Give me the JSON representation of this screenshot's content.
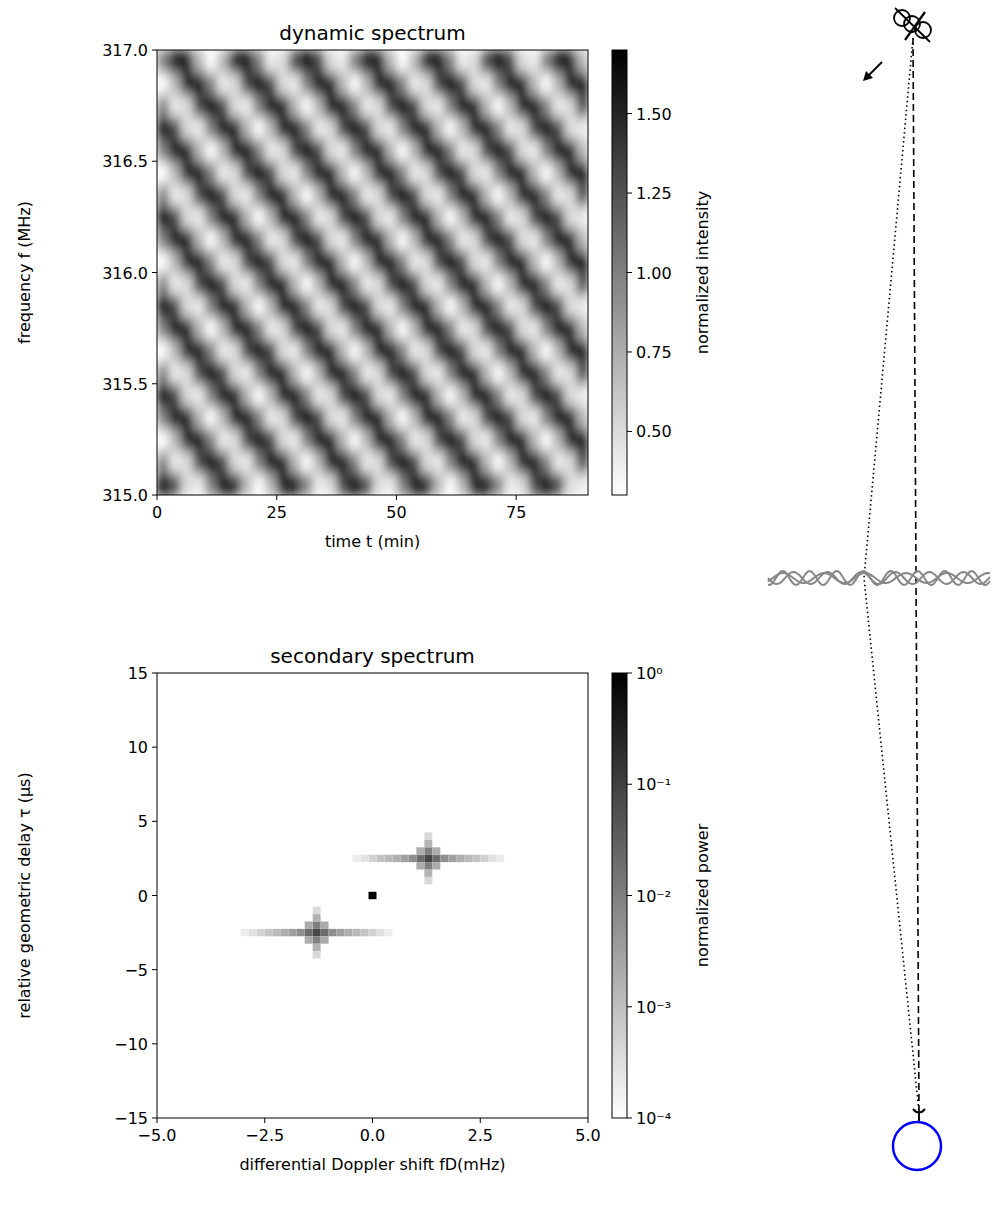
{
  "chart_data": [
    {
      "type": "heatmap",
      "title": "dynamic spectrum",
      "x_label": "time t (min)",
      "y_label": "frequency f (MHz)",
      "color": "gray",
      "xlim": [
        0,
        90
      ],
      "ylim": [
        315,
        317
      ],
      "xticks": [
        0,
        25,
        50,
        75
      ],
      "yticks": [
        {
          "value": 315,
          "label": "315.0"
        },
        {
          "value": 315.5,
          "label": "315.5"
        },
        {
          "value": 316,
          "label": "316.0"
        },
        {
          "value": 316.5,
          "label": "316.5"
        },
        {
          "value": 317,
          "label": "317.0"
        }
      ],
      "x_bins": [
        0,
        2.5,
        5,
        7.5,
        10,
        12.5,
        15,
        17.5,
        20,
        22.5,
        25,
        27.5,
        30,
        32.5,
        35,
        37.5,
        40,
        42.5,
        45,
        47.5,
        50,
        52.5,
        55,
        57.5,
        60,
        62.5,
        65,
        67.5,
        70,
        72.5,
        75,
        77.5,
        80,
        82.5,
        85,
        87.5,
        90
      ],
      "y_bins": [
        315,
        315.1,
        315.2,
        315.3,
        315.4,
        315.5,
        315.6,
        315.7,
        315.8,
        315.9,
        316,
        316.1,
        316.2,
        316.3,
        316.4,
        316.5,
        316.6,
        316.7,
        316.8,
        316.9,
        317
      ],
      "cells": [
        [
          1.7,
          1.3,
          0.5,
          0.4,
          1.0,
          1.6,
          1.5,
          0.7,
          0.3,
          0.7,
          1.5,
          1.6,
          1.0,
          0.4,
          0.5,
          1.3,
          1.7,
          1.3,
          0.5,
          0.4,
          1.0,
          1.6,
          1.5,
          0.7,
          0.3,
          0.7,
          1.5,
          1.6,
          1.0,
          0.4,
          0.5,
          1.3,
          1.7,
          1.3,
          0.5,
          0.4
        ],
        [
          1.0,
          0.4,
          0.5,
          1.3,
          1.7,
          1.3,
          0.5,
          0.4,
          1.0,
          1.6,
          1.5,
          0.7,
          0.3,
          0.7,
          1.5,
          1.6,
          1.0,
          0.4,
          0.5,
          1.3,
          1.7,
          1.3,
          0.5,
          0.4,
          1.0,
          1.6,
          1.5,
          0.7,
          0.3,
          0.7,
          1.5,
          1.6,
          1.0,
          0.4,
          0.5,
          1.3
        ],
        [
          0.3,
          0.7,
          1.5,
          1.6,
          1.0,
          0.4,
          0.5,
          1.3,
          1.7,
          1.3,
          0.5,
          0.4,
          1.0,
          1.6,
          1.5,
          0.7,
          0.3,
          0.7,
          1.5,
          1.6,
          1.0,
          0.4,
          0.5,
          1.3,
          1.7,
          1.3,
          0.5,
          0.4,
          1.0,
          1.6,
          1.5,
          0.7,
          0.3,
          0.7,
          1.5,
          1.6
        ],
        [
          1.0,
          1.6,
          1.5,
          0.7,
          0.3,
          0.7,
          1.5,
          1.6,
          1.0,
          0.4,
          0.5,
          1.3,
          1.7,
          1.3,
          0.5,
          0.4,
          1.0,
          1.6,
          1.5,
          0.7,
          0.3,
          0.7,
          1.5,
          1.6,
          1.0,
          0.4,
          0.5,
          1.3,
          1.7,
          1.3,
          0.5,
          0.4,
          1.0,
          1.6,
          1.5,
          0.7
        ],
        [
          1.7,
          1.3,
          0.5,
          0.4,
          1.0,
          1.6,
          1.5,
          0.7,
          0.3,
          0.7,
          1.5,
          1.6,
          1.0,
          0.4,
          0.5,
          1.3,
          1.7,
          1.3,
          0.5,
          0.4,
          1.0,
          1.6,
          1.5,
          0.7,
          0.3,
          0.7,
          1.5,
          1.6,
          1.0,
          0.4,
          0.5,
          1.3,
          1.7,
          1.3,
          0.5,
          0.4
        ],
        [
          1.0,
          0.4,
          0.5,
          1.3,
          1.7,
          1.3,
          0.5,
          0.4,
          1.0,
          1.6,
          1.5,
          0.7,
          0.3,
          0.7,
          1.5,
          1.6,
          1.0,
          0.4,
          0.5,
          1.3,
          1.7,
          1.3,
          0.5,
          0.4,
          1.0,
          1.6,
          1.5,
          0.7,
          0.3,
          0.7,
          1.5,
          1.6,
          1.0,
          0.4,
          0.5,
          1.3
        ],
        [
          0.3,
          0.7,
          1.5,
          1.6,
          1.0,
          0.4,
          0.5,
          1.3,
          1.7,
          1.3,
          0.5,
          0.4,
          1.0,
          1.6,
          1.5,
          0.7,
          0.3,
          0.7,
          1.5,
          1.6,
          1.0,
          0.4,
          0.5,
          1.3,
          1.7,
          1.3,
          0.5,
          0.4,
          1.0,
          1.6,
          1.5,
          0.7,
          0.3,
          0.7,
          1.5,
          1.6
        ],
        [
          1.0,
          1.6,
          1.5,
          0.7,
          0.3,
          0.7,
          1.5,
          1.6,
          1.0,
          0.4,
          0.5,
          1.3,
          1.7,
          1.3,
          0.5,
          0.4,
          1.0,
          1.6,
          1.5,
          0.7,
          0.3,
          0.7,
          1.5,
          1.6,
          1.0,
          0.4,
          0.5,
          1.3,
          1.7,
          1.3,
          0.5,
          0.4,
          1.0,
          1.6,
          1.5,
          0.7
        ],
        [
          1.7,
          1.3,
          0.5,
          0.4,
          1.0,
          1.6,
          1.5,
          0.7,
          0.3,
          0.7,
          1.5,
          1.6,
          1.0,
          0.4,
          0.5,
          1.3,
          1.7,
          1.3,
          0.5,
          0.4,
          1.0,
          1.6,
          1.5,
          0.7,
          0.3,
          0.7,
          1.5,
          1.6,
          1.0,
          0.4,
          0.5,
          1.3,
          1.7,
          1.3,
          0.5,
          0.4
        ],
        [
          1.0,
          0.4,
          0.5,
          1.3,
          1.7,
          1.3,
          0.5,
          0.4,
          1.0,
          1.6,
          1.5,
          0.7,
          0.3,
          0.7,
          1.5,
          1.6,
          1.0,
          0.4,
          0.5,
          1.3,
          1.7,
          1.3,
          0.5,
          0.4,
          1.0,
          1.6,
          1.5,
          0.7,
          0.3,
          0.7,
          1.5,
          1.6,
          1.0,
          0.4,
          0.5,
          1.3
        ],
        [
          0.3,
          0.7,
          1.5,
          1.6,
          1.0,
          0.4,
          0.5,
          1.3,
          1.7,
          1.3,
          0.5,
          0.4,
          1.0,
          1.6,
          1.5,
          0.7,
          0.3,
          0.7,
          1.5,
          1.6,
          1.0,
          0.4,
          0.5,
          1.3,
          1.7,
          1.3,
          0.5,
          0.4,
          1.0,
          1.6,
          1.5,
          0.7,
          0.3,
          0.7,
          1.5,
          1.6
        ],
        [
          1.0,
          1.6,
          1.5,
          0.7,
          0.3,
          0.7,
          1.5,
          1.6,
          1.0,
          0.4,
          0.5,
          1.3,
          1.7,
          1.3,
          0.5,
          0.4,
          1.0,
          1.6,
          1.5,
          0.7,
          0.3,
          0.7,
          1.5,
          1.6,
          1.0,
          0.4,
          0.5,
          1.3,
          1.7,
          1.3,
          0.5,
          0.4,
          1.0,
          1.6,
          1.5,
          0.7
        ],
        [
          1.7,
          1.3,
          0.5,
          0.4,
          1.0,
          1.6,
          1.5,
          0.7,
          0.3,
          0.7,
          1.5,
          1.6,
          1.0,
          0.4,
          0.5,
          1.3,
          1.7,
          1.3,
          0.5,
          0.4,
          1.0,
          1.6,
          1.5,
          0.7,
          0.3,
          0.7,
          1.5,
          1.6,
          1.0,
          0.4,
          0.5,
          1.3,
          1.7,
          1.3,
          0.5,
          0.4
        ],
        [
          1.0,
          0.4,
          0.5,
          1.3,
          1.7,
          1.3,
          0.5,
          0.4,
          1.0,
          1.6,
          1.5,
          0.7,
          0.3,
          0.7,
          1.5,
          1.6,
          1.0,
          0.4,
          0.5,
          1.3,
          1.7,
          1.3,
          0.5,
          0.4,
          1.0,
          1.6,
          1.5,
          0.7,
          0.3,
          0.7,
          1.5,
          1.6,
          1.0,
          0.4,
          0.5,
          1.3
        ],
        [
          0.3,
          0.7,
          1.5,
          1.6,
          1.0,
          0.4,
          0.5,
          1.3,
          1.7,
          1.3,
          0.5,
          0.4,
          1.0,
          1.6,
          1.5,
          0.7,
          0.3,
          0.7,
          1.5,
          1.6,
          1.0,
          0.4,
          0.5,
          1.3,
          1.7,
          1.3,
          0.5,
          0.4,
          1.0,
          1.6,
          1.5,
          0.7,
          0.3,
          0.7,
          1.5,
          1.6
        ],
        [
          1.0,
          1.6,
          1.5,
          0.7,
          0.3,
          0.7,
          1.5,
          1.6,
          1.0,
          0.4,
          0.5,
          1.3,
          1.7,
          1.3,
          0.5,
          0.4,
          1.0,
          1.6,
          1.5,
          0.7,
          0.3,
          0.7,
          1.5,
          1.6,
          1.0,
          0.4,
          0.5,
          1.3,
          1.7,
          1.3,
          0.5,
          0.4,
          1.0,
          1.6,
          1.5,
          0.7
        ],
        [
          1.7,
          1.3,
          0.5,
          0.4,
          1.0,
          1.6,
          1.5,
          0.7,
          0.3,
          0.7,
          1.5,
          1.6,
          1.0,
          0.4,
          0.5,
          1.3,
          1.7,
          1.3,
          0.5,
          0.4,
          1.0,
          1.6,
          1.5,
          0.7,
          0.3,
          0.7,
          1.5,
          1.6,
          1.0,
          0.4,
          0.5,
          1.3,
          1.7,
          1.3,
          0.5,
          0.4
        ],
        [
          1.0,
          0.4,
          0.5,
          1.3,
          1.7,
          1.3,
          0.5,
          0.4,
          1.0,
          1.6,
          1.5,
          0.7,
          0.3,
          0.7,
          1.5,
          1.6,
          1.0,
          0.4,
          0.5,
          1.3,
          1.7,
          1.3,
          0.5,
          0.4,
          1.0,
          1.6,
          1.5,
          0.7,
          0.3,
          0.7,
          1.5,
          1.6,
          1.0,
          0.4,
          0.5,
          1.3
        ],
        [
          0.3,
          0.7,
          1.5,
          1.6,
          1.0,
          0.4,
          0.5,
          1.3,
          1.7,
          1.3,
          0.5,
          0.4,
          1.0,
          1.6,
          1.5,
          0.7,
          0.3,
          0.7,
          1.5,
          1.6,
          1.0,
          0.4,
          0.5,
          1.3,
          1.7,
          1.3,
          0.5,
          0.4,
          1.0,
          1.6,
          1.5,
          0.7,
          0.3,
          0.7,
          1.5,
          1.6
        ],
        [
          1.0,
          1.6,
          1.5,
          0.7,
          0.3,
          0.7,
          1.5,
          1.6,
          1.0,
          0.4,
          0.5,
          1.3,
          1.7,
          1.3,
          0.5,
          0.4,
          1.0,
          1.6,
          1.5,
          0.7,
          0.3,
          0.7,
          1.5,
          1.6,
          1.0,
          0.4,
          0.5,
          1.3,
          1.7,
          1.3,
          0.5,
          0.4,
          1.0,
          1.6,
          1.5,
          0.7
        ]
      ],
      "colorbar": {
        "label": "normalized intensity",
        "range": [
          0.3,
          1.7
        ],
        "ticks": [
          {
            "value": 0.5,
            "label": "0.50"
          },
          {
            "value": 0.75,
            "label": "0.75"
          },
          {
            "value": 1,
            "label": "1.00"
          },
          {
            "value": 1.25,
            "label": "1.25"
          },
          {
            "value": 1.5,
            "label": "1.50"
          }
        ]
      }
    },
    {
      "type": "heatmap",
      "title": "secondary spectrum",
      "x_label": "differential Doppler shift fD(mHz)",
      "y_label": "relative geometric delay τ (μs)",
      "color": "gray",
      "xlim": [
        -5,
        5
      ],
      "ylim": [
        -15,
        15
      ],
      "xticks": [
        {
          "value": -5,
          "label": "−5.0"
        },
        {
          "value": -2.5,
          "label": "−2.5"
        },
        {
          "value": 0,
          "label": "0.0"
        },
        {
          "value": 2.5,
          "label": "2.5"
        },
        {
          "value": 5,
          "label": "5.0"
        }
      ],
      "yticks": [
        {
          "value": -15,
          "label": "−15"
        },
        {
          "value": -10,
          "label": "−10"
        },
        {
          "value": -5,
          "label": "−5"
        },
        0,
        5,
        10,
        15
      ],
      "cell_size": [
        0.185,
        0.5
      ],
      "cells": [
        [
          0,
          0,
          1
        ],
        [
          1.296,
          2.5,
          0.08
        ],
        [
          1.111,
          2.5,
          0.02
        ],
        [
          1.481,
          2.5,
          0.02
        ],
        [
          0.926,
          2.5,
          0.006
        ],
        [
          1.667,
          2.5,
          0.006
        ],
        [
          0.741,
          2.5,
          0.003
        ],
        [
          1.852,
          2.5,
          0.003
        ],
        [
          0.556,
          2.5,
          0.0018
        ],
        [
          2.037,
          2.5,
          0.0018
        ],
        [
          0.37,
          2.5,
          0.0012
        ],
        [
          2.222,
          2.5,
          0.0012
        ],
        [
          0.185,
          2.5,
          0.0008
        ],
        [
          2.407,
          2.5,
          0.0008
        ],
        [
          0,
          2.5,
          0.0005
        ],
        [
          2.593,
          2.5,
          0.0005
        ],
        [
          -0.185,
          2.5,
          0.0003
        ],
        [
          2.778,
          2.5,
          0.0003
        ],
        [
          -0.37,
          2.5,
          0.0002
        ],
        [
          2.963,
          2.5,
          0.0002
        ],
        [
          1.296,
          3,
          0.01
        ],
        [
          1.296,
          2,
          0.01
        ],
        [
          1.296,
          3.5,
          0.0015
        ],
        [
          1.296,
          1.5,
          0.0015
        ],
        [
          1.296,
          4,
          0.0004
        ],
        [
          1.296,
          1,
          0.0004
        ],
        [
          1.111,
          3,
          0.002
        ],
        [
          1.481,
          3,
          0.002
        ],
        [
          1.111,
          2,
          0.002
        ],
        [
          1.481,
          2,
          0.002
        ],
        [
          -1.296,
          -2.5,
          0.08
        ],
        [
          -1.111,
          -2.5,
          0.02
        ],
        [
          -1.481,
          -2.5,
          0.02
        ],
        [
          -0.926,
          -2.5,
          0.006
        ],
        [
          -1.667,
          -2.5,
          0.006
        ],
        [
          -0.741,
          -2.5,
          0.003
        ],
        [
          -1.852,
          -2.5,
          0.003
        ],
        [
          -0.556,
          -2.5,
          0.0018
        ],
        [
          -2.037,
          -2.5,
          0.0018
        ],
        [
          -0.37,
          -2.5,
          0.0012
        ],
        [
          -2.222,
          -2.5,
          0.0012
        ],
        [
          -0.185,
          -2.5,
          0.0008
        ],
        [
          -2.407,
          -2.5,
          0.0008
        ],
        [
          0,
          -2.5,
          0.0005
        ],
        [
          -2.593,
          -2.5,
          0.0005
        ],
        [
          0.185,
          -2.5,
          0.0003
        ],
        [
          -2.778,
          -2.5,
          0.0003
        ],
        [
          0.37,
          -2.5,
          0.0002
        ],
        [
          -2.963,
          -2.5,
          0.0002
        ],
        [
          -1.296,
          -3,
          0.01
        ],
        [
          -1.296,
          -2,
          0.01
        ],
        [
          -1.296,
          -3.5,
          0.0015
        ],
        [
          -1.296,
          -1.5,
          0.0015
        ],
        [
          -1.296,
          -4,
          0.0004
        ],
        [
          -1.296,
          -1,
          0.0004
        ],
        [
          -1.111,
          -3,
          0.002
        ],
        [
          -1.481,
          -3,
          0.002
        ],
        [
          -1.111,
          -2,
          0.002
        ],
        [
          -1.481,
          -2,
          0.002
        ]
      ],
      "colorbar": {
        "label": "normalized power",
        "range": [
          0.0001,
          1
        ],
        "log": true,
        "ticks": [
          {
            "value": 1,
            "label": "10⁰"
          },
          {
            "value": 0.1,
            "label": "10⁻¹"
          },
          {
            "value": 0.01,
            "label": "10⁻²"
          },
          {
            "value": 0.001,
            "label": "10⁻³"
          },
          {
            "value": 0.0001,
            "label": "10⁻⁴"
          }
        ]
      }
    }
  ]
}
